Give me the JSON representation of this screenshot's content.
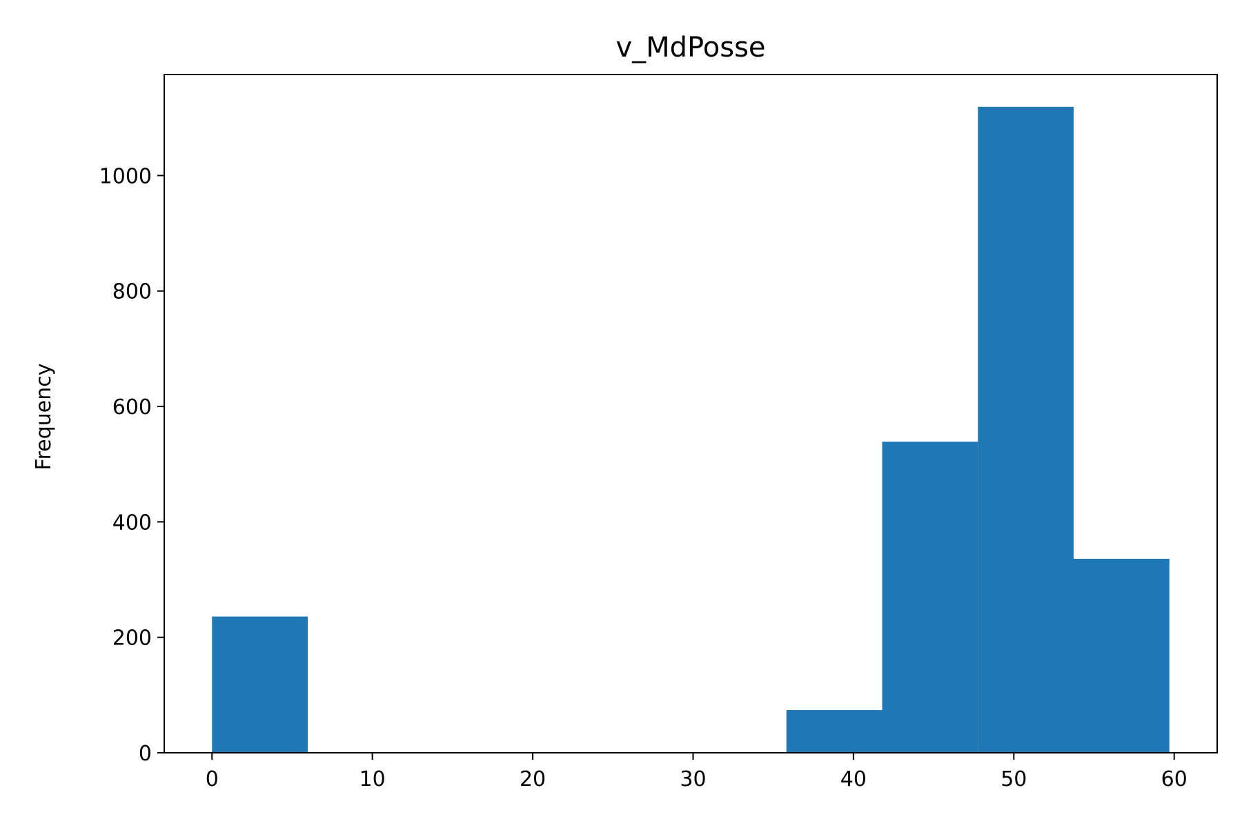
{
  "chart_data": {
    "type": "bar",
    "title": "v_MdPosse",
    "xlabel": "",
    "ylabel": "Frequency",
    "bins": [
      {
        "x0": 0,
        "x1": 5.97,
        "value": 236
      },
      {
        "x0": 5.97,
        "x1": 11.94,
        "value": 0
      },
      {
        "x0": 11.94,
        "x1": 17.91,
        "value": 0
      },
      {
        "x0": 17.91,
        "x1": 23.88,
        "value": 0
      },
      {
        "x0": 23.88,
        "x1": 29.85,
        "value": 0
      },
      {
        "x0": 29.85,
        "x1": 35.82,
        "value": 0
      },
      {
        "x0": 35.82,
        "x1": 41.79,
        "value": 74
      },
      {
        "x0": 41.79,
        "x1": 47.76,
        "value": 539
      },
      {
        "x0": 47.76,
        "x1": 53.73,
        "value": 1119
      },
      {
        "x0": 53.73,
        "x1": 59.7,
        "value": 336
      }
    ],
    "xlim": [
      -2.98,
      62.68
    ],
    "ylim": [
      0,
      1175
    ],
    "xticks": [
      0,
      10,
      20,
      30,
      40,
      50,
      60
    ],
    "yticks": [
      0,
      200,
      400,
      600,
      800,
      1000
    ],
    "grid": false,
    "bar_color": "#1f77b4"
  }
}
